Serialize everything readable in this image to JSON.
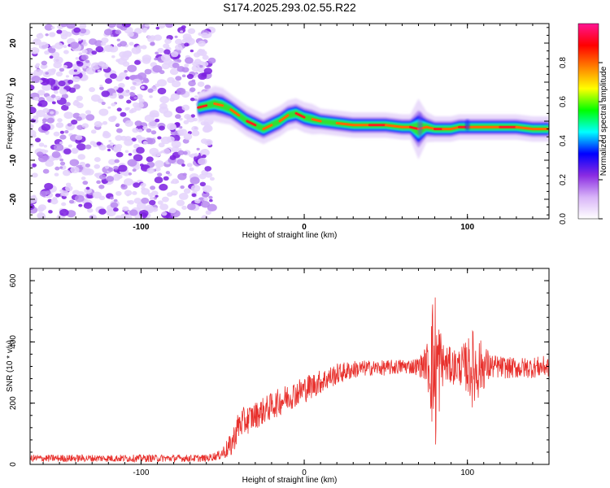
{
  "title": "S174.2025.293.02.55.R22",
  "chart_data": [
    {
      "type": "heatmap",
      "name": "spectrogram",
      "xlabel": "Height of straight line (km)",
      "ylabel": "Frequency (Hz)",
      "xlim": [
        -168,
        150
      ],
      "ylim": [
        -25,
        25
      ],
      "xticks": [
        -100,
        0,
        100
      ],
      "xtick_labels": [
        "-100",
        "0",
        "100"
      ],
      "yticks": [
        -20,
        -10,
        0,
        10,
        20
      ],
      "ytick_labels": [
        "-20",
        "-10",
        "0",
        "10",
        "20"
      ],
      "noise_region_x": [
        -168,
        -56
      ],
      "ridge": {
        "x": [
          -65,
          -60,
          -55,
          -50,
          -45,
          -40,
          -35,
          -30,
          -25,
          -20,
          -15,
          -10,
          -5,
          0,
          5,
          10,
          20,
          30,
          40,
          50,
          60,
          65,
          70,
          75,
          80,
          85,
          90,
          95,
          100,
          110,
          120,
          130,
          140,
          150
        ],
        "y": [
          3.5,
          4.0,
          4.5,
          4.0,
          3.0,
          1.5,
          0.0,
          -1.0,
          -2.0,
          -1.0,
          0.0,
          1.5,
          2.0,
          1.0,
          0.5,
          0.0,
          -0.5,
          -1.0,
          -1.0,
          -1.0,
          -1.5,
          -1.5,
          -2.0,
          -1.5,
          -2.0,
          -2.0,
          -2.0,
          -1.5,
          -1.5,
          -1.5,
          -1.5,
          -1.5,
          -2.0,
          -2.0
        ],
        "width": [
          3,
          3,
          3.5,
          3.5,
          3,
          3,
          3,
          3,
          3,
          3,
          3,
          3,
          3,
          3,
          3,
          2.5,
          2.5,
          2.5,
          2.5,
          2.5,
          2.5,
          2.5,
          6,
          3,
          2.5,
          2.5,
          2.5,
          2.5,
          2.5,
          2.5,
          2.5,
          2.5,
          2.5,
          2.5
        ]
      },
      "colorbar": {
        "label": "Normalized spectral amplitude",
        "ticks": [
          0.0,
          0.2,
          0.4,
          0.6,
          0.8
        ],
        "tick_labels": [
          "0.0",
          "0.2",
          "0.4",
          "0.6",
          "0.8"
        ],
        "range": [
          0,
          1
        ],
        "colors": [
          "#ffffff",
          "#d8b4f8",
          "#8a2be2",
          "#0000ff",
          "#00ffff",
          "#00ff00",
          "#ffff00",
          "#ff8000",
          "#ff0000",
          "#ff1493"
        ]
      }
    },
    {
      "type": "line",
      "name": "snr",
      "xlabel": "Height of straight line (km)",
      "ylabel": "SNR (10 * v/v)",
      "xlim": [
        -168,
        150
      ],
      "ylim": [
        0,
        640
      ],
      "xticks": [
        -100,
        0,
        100
      ],
      "xtick_labels": [
        "-100",
        "0",
        "100"
      ],
      "yticks": [
        0,
        200,
        400,
        600
      ],
      "ytick_labels": [
        "0",
        "200",
        "400",
        "600"
      ],
      "color": "#e8312d",
      "envelope": {
        "x": [
          -168,
          -100,
          -60,
          -52,
          -45,
          -40,
          -30,
          -20,
          -10,
          0,
          10,
          20,
          30,
          40,
          50,
          60,
          65,
          70,
          75,
          78,
          80,
          82,
          85,
          90,
          95,
          100,
          104,
          108,
          115,
          125,
          135,
          150
        ],
        "y": [
          20,
          20,
          20,
          30,
          60,
          130,
          160,
          190,
          220,
          245,
          270,
          295,
          310,
          315,
          315,
          320,
          320,
          320,
          330,
          330,
          300,
          320,
          330,
          320,
          320,
          320,
          310,
          320,
          320,
          315,
          315,
          320
        ],
        "noise": [
          12,
          12,
          12,
          15,
          40,
          50,
          45,
          45,
          45,
          45,
          40,
          35,
          30,
          25,
          25,
          25,
          25,
          30,
          60,
          200,
          300,
          200,
          70,
          60,
          60,
          90,
          140,
          90,
          40,
          35,
          35,
          35
        ]
      }
    }
  ]
}
